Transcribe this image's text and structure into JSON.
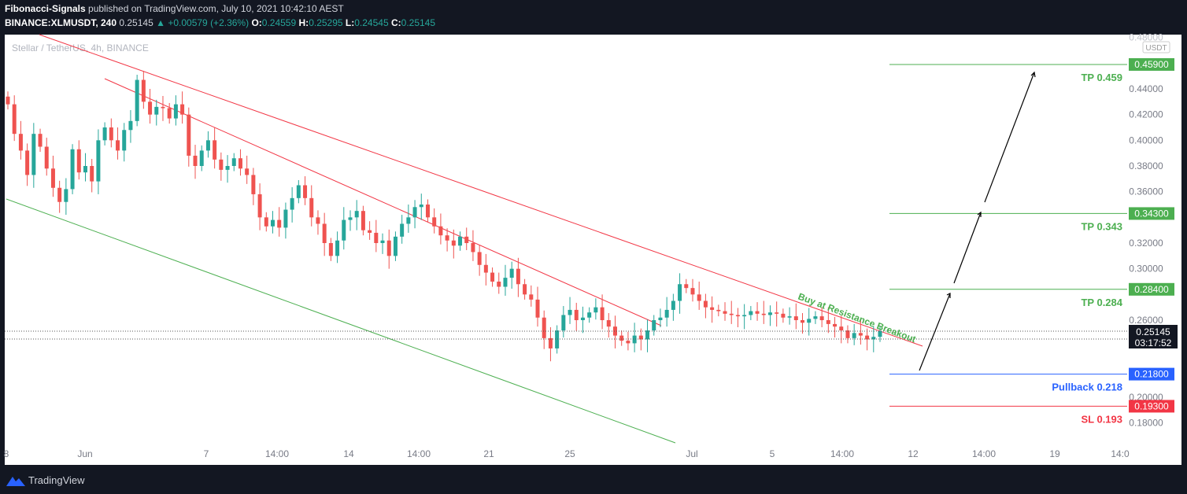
{
  "header": {
    "author": "Fibonacci-Signals",
    "published": "published on TradingView.com, July 10, 2021 10:42:10 AEST",
    "symbol": "BINANCE:XLMUSDT, 240",
    "price": "0.25145",
    "change": "+0.00579 (+2.36%)",
    "open": "0.24559",
    "high": "0.25295",
    "low": "0.24545",
    "close": "0.25145"
  },
  "chart_title": "Stellar / TetherUS, 4h, BINANCE",
  "footer_brand": "TradingView",
  "chart_data": {
    "type": "candlestick",
    "unit": "USDT",
    "ylim": [
      0.17,
      0.48
    ],
    "y_ticks": [
      "0.48000",
      "0.44000",
      "0.42000",
      "0.40000",
      "0.38000",
      "0.36000",
      "0.32000",
      "0.30000",
      "0.26000",
      "0.20000",
      "0.18000"
    ],
    "x_ticks": [
      "8",
      "Jun",
      "7",
      "14:00",
      "14",
      "14:00",
      "21",
      "25",
      "Jul",
      "5",
      "14:00",
      "12",
      "14:00",
      "19",
      "14:0"
    ],
    "last_price": "0.25145",
    "countdown": "03:17:52",
    "levels": [
      {
        "name": "TP 0.459",
        "price": "0.45900",
        "value": 0.459,
        "color": "#4caf50"
      },
      {
        "name": "TP 0.343",
        "price": "0.34300",
        "value": 0.343,
        "color": "#4caf50"
      },
      {
        "name": "TP 0.284",
        "price": "0.28400",
        "value": 0.284,
        "color": "#4caf50"
      },
      {
        "name": "Pullback 0.218",
        "price": "0.21800",
        "value": 0.218,
        "color": "#2962ff"
      },
      {
        "name": "SL 0.193",
        "price": "0.19300",
        "value": 0.193,
        "color": "#f23645"
      }
    ],
    "annotation": "Buy at Resistance Breakout",
    "closes": [
      0.428,
      0.405,
      0.392,
      0.373,
      0.405,
      0.395,
      0.378,
      0.363,
      0.352,
      0.362,
      0.393,
      0.375,
      0.38,
      0.368,
      0.4,
      0.41,
      0.4,
      0.392,
      0.408,
      0.415,
      0.447,
      0.43,
      0.42,
      0.426,
      0.425,
      0.417,
      0.428,
      0.42,
      0.388,
      0.38,
      0.392,
      0.4,
      0.385,
      0.377,
      0.38,
      0.386,
      0.378,
      0.373,
      0.358,
      0.34,
      0.333,
      0.338,
      0.332,
      0.346,
      0.355,
      0.365,
      0.355,
      0.34,
      0.335,
      0.32,
      0.31,
      0.322,
      0.338,
      0.34,
      0.345,
      0.33,
      0.328,
      0.32,
      0.322,
      0.31,
      0.325,
      0.335,
      0.34,
      0.348,
      0.35,
      0.34,
      0.333,
      0.326,
      0.322,
      0.318,
      0.325,
      0.32,
      0.313,
      0.303,
      0.297,
      0.29,
      0.286,
      0.293,
      0.3,
      0.288,
      0.28,
      0.276,
      0.262,
      0.246,
      0.238,
      0.252,
      0.264,
      0.268,
      0.26,
      0.262,
      0.266,
      0.27,
      0.26,
      0.255,
      0.248,
      0.244,
      0.242,
      0.248,
      0.245,
      0.252,
      0.26,
      0.262,
      0.268,
      0.275,
      0.288,
      0.285,
      0.28,
      0.275,
      0.27,
      0.268,
      0.267,
      0.265,
      0.264,
      0.263,
      0.264,
      0.267,
      0.265,
      0.264,
      0.266,
      0.265,
      0.262,
      0.263,
      0.26,
      0.258,
      0.261,
      0.263,
      0.26,
      0.257,
      0.255,
      0.252,
      0.246,
      0.25,
      0.248,
      0.245,
      0.247,
      0.25145
    ]
  }
}
